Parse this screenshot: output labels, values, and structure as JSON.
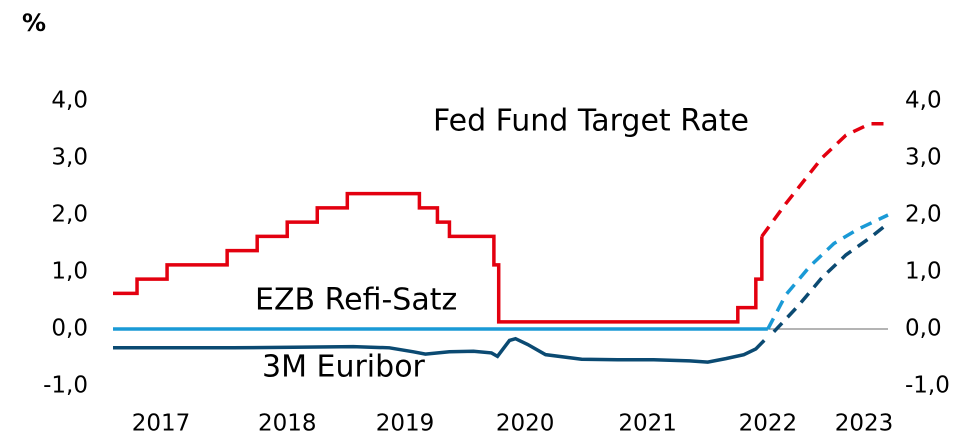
{
  "chart_data": {
    "type": "line",
    "ylabel": "%",
    "xlim": [
      2017.0,
      2023.45
    ],
    "xticks": [
      {
        "value": 2017.4,
        "label": "2017"
      },
      {
        "value": 2018.45,
        "label": "2018"
      },
      {
        "value": 2019.43,
        "label": "2019"
      },
      {
        "value": 2020.43,
        "label": "2020"
      },
      {
        "value": 2021.45,
        "label": "2021"
      },
      {
        "value": 2022.45,
        "label": "2022"
      },
      {
        "value": 2023.25,
        "label": "2023"
      }
    ],
    "ylim": [
      -1,
      4
    ],
    "yticks": [
      {
        "value": -1,
        "label": "-1,0"
      },
      {
        "value": 0,
        "label": "0,0"
      },
      {
        "value": 1,
        "label": "1,0"
      },
      {
        "value": 2,
        "label": "2,0"
      },
      {
        "value": 3,
        "label": "3,0"
      },
      {
        "value": 4,
        "label": "4,0"
      }
    ],
    "grid": false,
    "series": [
      {
        "name": "Fed Fund Target Rate",
        "color": "#e3000f",
        "x": [
          2017.0,
          2017.2,
          2017.2,
          2017.45,
          2017.45,
          2017.95,
          2017.95,
          2018.2,
          2018.2,
          2018.45,
          2018.45,
          2018.7,
          2018.7,
          2018.95,
          2018.95,
          2019.55,
          2019.55,
          2019.7,
          2019.7,
          2019.8,
          2019.8,
          2020.17,
          2020.17,
          2020.21,
          2020.21,
          2022.2,
          2022.2,
          2022.35,
          2022.35,
          2022.4,
          2022.4
        ],
        "values": [
          0.625,
          0.625,
          0.875,
          0.875,
          1.125,
          1.125,
          1.375,
          1.375,
          1.625,
          1.625,
          1.875,
          1.875,
          2.125,
          2.125,
          2.375,
          2.375,
          2.125,
          2.125,
          1.875,
          1.875,
          1.625,
          1.625,
          1.125,
          1.125,
          0.125,
          0.125,
          0.375,
          0.375,
          0.875,
          0.875,
          1.625
        ],
        "forecast_x": [
          2022.4,
          2022.6,
          2022.9,
          2023.1,
          2023.3,
          2023.45
        ],
        "forecast_values": [
          1.625,
          2.2,
          3.0,
          3.4,
          3.6,
          3.6
        ]
      },
      {
        "name": "EZB Refi-Satz",
        "color": "#1a9ad6",
        "x": [
          2017.0,
          2022.45
        ],
        "values": [
          0,
          0
        ],
        "forecast_x": [
          2022.45,
          2022.6,
          2022.8,
          2023.0,
          2023.2,
          2023.45
        ],
        "forecast_values": [
          0,
          0.6,
          1.1,
          1.5,
          1.75,
          2.0
        ]
      },
      {
        "name": "3M Euribor",
        "color": "#0b4a72",
        "x": [
          2017.0,
          2017.5,
          2018.0,
          2018.5,
          2019.0,
          2019.3,
          2019.5,
          2019.6,
          2019.8,
          2020.0,
          2020.15,
          2020.2,
          2020.3,
          2020.35,
          2020.45,
          2020.6,
          2020.9,
          2021.2,
          2021.5,
          2021.8,
          2021.95,
          2022.1,
          2022.25,
          2022.35,
          2022.42
        ],
        "values": [
          -0.33,
          -0.33,
          -0.33,
          -0.32,
          -0.31,
          -0.33,
          -0.4,
          -0.44,
          -0.4,
          -0.39,
          -0.42,
          -0.48,
          -0.2,
          -0.17,
          -0.27,
          -0.45,
          -0.53,
          -0.54,
          -0.54,
          -0.56,
          -0.58,
          -0.52,
          -0.45,
          -0.35,
          -0.2
        ],
        "forecast_x": [
          2022.5,
          2022.7,
          2022.9,
          2023.1,
          2023.3,
          2023.45
        ],
        "forecast_values": [
          -0.05,
          0.4,
          0.9,
          1.3,
          1.6,
          1.85
        ]
      }
    ]
  }
}
